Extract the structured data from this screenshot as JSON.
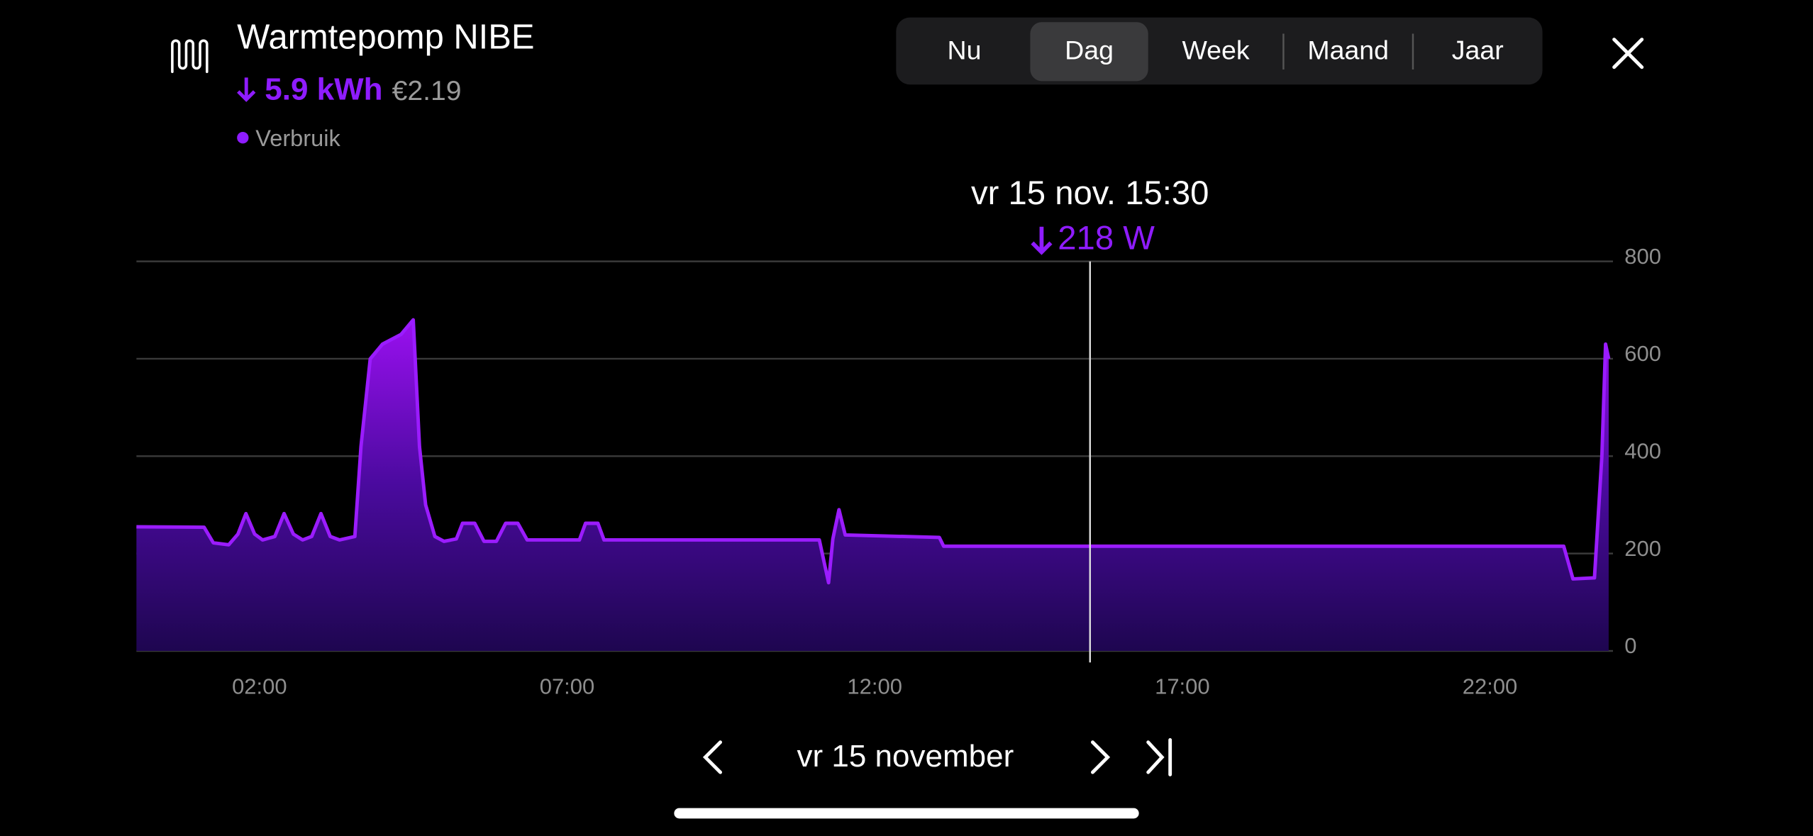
{
  "header": {
    "title": "Warmtepomp NIBE",
    "energy": "5.9 kWh",
    "cost": "€2.19"
  },
  "tabs": [
    "Nu",
    "Dag",
    "Week",
    "Maand",
    "Jaar"
  ],
  "selected_tab": 1,
  "chart_data": {
    "type": "area",
    "x": [
      0,
      1.1,
      1.25,
      1.5,
      1.65,
      1.78,
      1.92,
      2.05,
      2.25,
      2.4,
      2.55,
      2.7,
      2.85,
      3.0,
      3.15,
      3.3,
      3.55,
      3.65,
      3.8,
      4.0,
      4.3,
      4.5,
      4.6,
      4.7,
      4.85,
      5.0,
      5.2,
      5.3,
      5.5,
      5.65,
      5.85,
      6.0,
      6.2,
      6.35,
      7.2,
      7.3,
      7.5,
      7.6,
      11.1,
      11.25,
      11.32,
      11.42,
      11.52,
      13.05,
      13.12,
      23.2,
      23.35,
      23.7,
      23.82,
      23.88,
      23.93
    ],
    "series": [
      {
        "name": "Verbruik",
        "color": "#9b1cff",
        "values": [
          255,
          254,
          222,
          218,
          240,
          282,
          240,
          228,
          235,
          282,
          240,
          228,
          235,
          282,
          235,
          228,
          235,
          420,
          600,
          630,
          650,
          680,
          420,
          300,
          235,
          225,
          230,
          262,
          262,
          225,
          225,
          262,
          262,
          228,
          228,
          262,
          262,
          228,
          228,
          140,
          230,
          290,
          238,
          233,
          215,
          215,
          148,
          150,
          400,
          630,
          600
        ]
      }
    ],
    "xlim": [
      0,
      24
    ],
    "xticks": [
      {
        "value": 2,
        "label": "02:00"
      },
      {
        "value": 7,
        "label": "07:00"
      },
      {
        "value": 12,
        "label": "12:00"
      },
      {
        "value": 17,
        "label": "17:00"
      },
      {
        "value": 22,
        "label": "22:00"
      }
    ],
    "ylim": [
      0,
      800
    ],
    "yticks": [
      0,
      200,
      400,
      600,
      800
    ],
    "grid": true,
    "cursor": {
      "label": "vr 15 nov. 15:30",
      "x": 15.5,
      "value": 218,
      "value_label": "218 W"
    }
  },
  "footer": {
    "date": "vr 15 november"
  }
}
